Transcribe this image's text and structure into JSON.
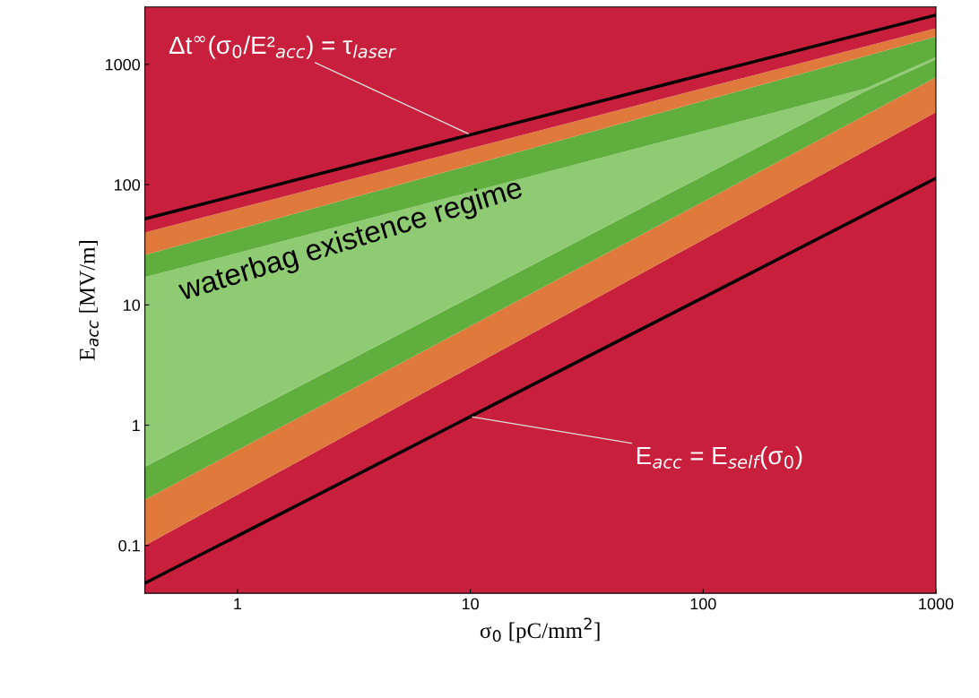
{
  "chart_data": {
    "type": "area",
    "stacked": true,
    "xlabel": "σ$_{0}$ [pC/mm$^{2}$]",
    "ylabel": "E$_{acc}$ [MV/m]",
    "log": "xy",
    "grid": false,
    "legend": false,
    "xlim": [
      0.4,
      1000
    ],
    "ylim": [
      0.04,
      3000
    ],
    "xticks": [
      1,
      10,
      100,
      1000
    ],
    "yticks": [
      0.1,
      1,
      10,
      100,
      1000
    ],
    "series": [
      {
        "color": "#c8203c",
        "x": [
          0.4,
          500,
          1000
        ],
        "values": [
          0.1,
          192,
          400
        ]
      },
      {
        "color": "#e07a3c",
        "x": [
          0.4,
          500,
          1000
        ],
        "values": [
          0.14,
          188,
          380
        ]
      },
      {
        "color": "#5fae3e",
        "x": [
          0.4,
          500,
          1000
        ],
        "values": [
          0.21,
          220,
          320
        ]
      },
      {
        "color": "#8fcb72",
        "x": [
          0.4,
          500,
          1000
        ],
        "values": [
          16.55,
          30,
          50
        ]
      },
      {
        "color": "#5fae3e",
        "x": [
          0.4,
          500,
          1000
        ],
        "values": [
          9,
          544,
          550
        ]
      },
      {
        "color": "#e07a3c",
        "x": [
          0.4,
          500,
          1000
        ],
        "values": [
          14,
          240,
          300
        ]
      },
      {
        "color": "#c8203c",
        "x": [
          0.4,
          500,
          1000
        ],
        "values": [
          2960,
          1586,
          1000
        ]
      },
      {
        "type": "line",
        "color": "#000000",
        "x": [
          0.4,
          1,
          10,
          100,
          1000
        ],
        "values": [
          52,
          82,
          260,
          820,
          2570
        ]
      },
      {
        "type": "line",
        "color": "#000000",
        "x": [
          0.4,
          1,
          10,
          100,
          1000
        ],
        "values": [
          0.0486,
          0.12,
          1.18,
          11.5,
          113
        ]
      }
    ],
    "annotations": [
      {
        "text": "Δt$^{∞}$(σ$_{0}$/E²$_{acc}$) = τ$_{laser}$",
        "x": 10,
        "y": 260
      },
      {
        "text": "E$_{acc}$ = E$_{self}$(σ$_{0}$)",
        "x": 10,
        "y": 1.18
      },
      "waterbag existence regime"
    ]
  }
}
